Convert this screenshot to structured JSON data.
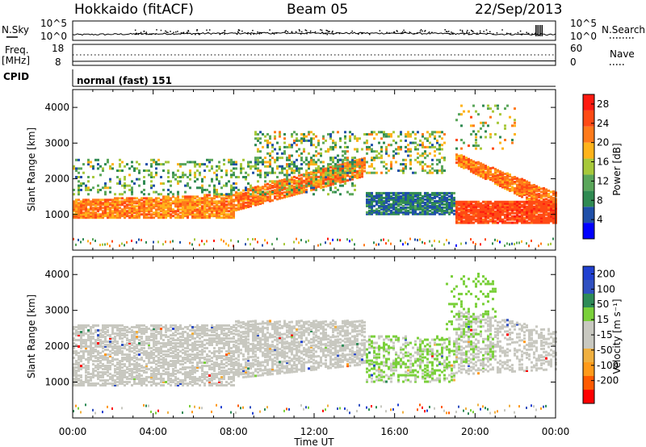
{
  "header": {
    "station": "Hokkaido (fitACF)",
    "beam": "Beam 05",
    "date": "22/Sep/2013"
  },
  "top_strip": {
    "left_label": "N.Sky",
    "right_label": "N.Search",
    "yticks": [
      "10^5",
      "10^0"
    ]
  },
  "freq_strip": {
    "left_label_1": "Freq.",
    "left_label_2": "[MHz]",
    "left_ticks": [
      "18",
      "8"
    ],
    "right_label": "Nave",
    "right_ticks": [
      "60",
      "0"
    ]
  },
  "cpid": {
    "label": "CPID",
    "value": "normal (fast) 151"
  },
  "colors": {
    "power_scale": [
      "#0000ff",
      "#1f4fa8",
      "#2f8a52",
      "#5aa65a",
      "#a7c83a",
      "#ffb31a",
      "#ff7a1a",
      "#ff4a14",
      "#ff1a10"
    ],
    "velocity_scale": [
      "#ff0000",
      "#ff5a00",
      "#ff9a1a",
      "#f0b040",
      "#c8c8c0",
      "#c8c8c0",
      "#7ad03a",
      "#2e8b57",
      "#3050c0",
      "#2040d0"
    ]
  },
  "chart_data": [
    {
      "type": "heatmap",
      "name": "power",
      "ylabel": "Slant Range [km]",
      "xlabel": "Time UT",
      "xticks": [
        "00:00",
        "04:00",
        "08:00",
        "12:00",
        "16:00",
        "20:00",
        "00:00"
      ],
      "yticks": [
        "1000",
        "2000",
        "3000",
        "4000"
      ],
      "ylim": [
        0,
        4500
      ],
      "xlim_hours": [
        0,
        24
      ],
      "colorbar": {
        "label": "Power [dB]",
        "ticks": [
          "4",
          "8",
          "12",
          "16",
          "20",
          "24",
          "28"
        ],
        "range": [
          0,
          30
        ]
      },
      "features": [
        {
          "from_h": 0,
          "to_h": 8,
          "range_km": [
            900,
            1400
          ],
          "power": "28"
        },
        {
          "from_h": 8,
          "to_h": 14.5,
          "range_km": [
            1200,
            2600
          ],
          "power": "28"
        },
        {
          "from_h": 14,
          "to_h": 19,
          "range_km": [
            900,
            1800
          ],
          "power": "12"
        },
        {
          "from_h": 19,
          "to_h": 24,
          "range_km": [
            1000,
            2600
          ],
          "power": "28"
        }
      ]
    },
    {
      "type": "heatmap",
      "name": "velocity",
      "ylabel": "Slant Range [km]",
      "xlabel": "Time UT",
      "xticks": [
        "00:00",
        "04:00",
        "08:00",
        "12:00",
        "16:00",
        "20:00",
        "00:00"
      ],
      "yticks": [
        "1000",
        "2000",
        "3000",
        "4000"
      ],
      "ylim": [
        0,
        4500
      ],
      "xlim_hours": [
        0,
        24
      ],
      "colorbar": {
        "label": "Velocity [m s⁻¹]",
        "ticks": [
          "200",
          "100",
          "50",
          "15",
          "-15",
          "-50",
          "-100",
          "-200"
        ],
        "range": [
          -250,
          250
        ]
      },
      "features": [
        {
          "from_h": 0,
          "to_h": 14,
          "range_km": [
            900,
            2600
          ],
          "velocity": "-15"
        },
        {
          "from_h": 14,
          "to_h": 19,
          "range_km": [
            1000,
            1800
          ],
          "velocity": "50"
        },
        {
          "from_h": 19,
          "to_h": 24,
          "range_km": [
            1600,
            3000
          ],
          "velocity": "-15"
        }
      ]
    }
  ]
}
